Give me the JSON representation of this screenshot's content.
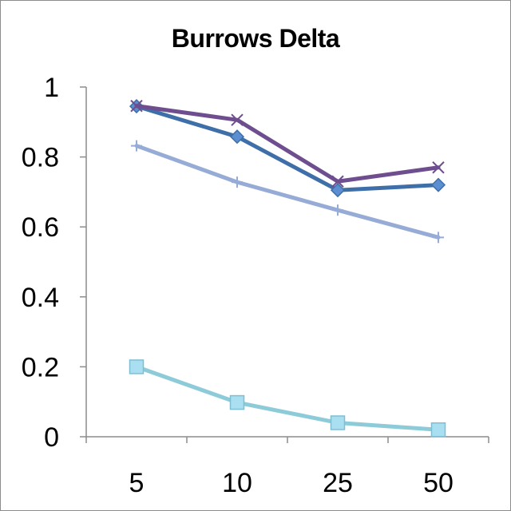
{
  "chart_data": {
    "type": "line",
    "title": "Burrows Delta",
    "xlabel": "",
    "ylabel": "",
    "categories": [
      "5",
      "10",
      "25",
      "50"
    ],
    "ylim": [
      0,
      1
    ],
    "yticks": [
      0,
      0.2,
      0.4,
      0.6,
      0.8,
      1
    ],
    "ytick_labels": [
      "0",
      "0.2",
      "0.4",
      "0.6",
      "0.8",
      "1"
    ],
    "grid": false,
    "legend": "none",
    "series": [
      {
        "values": [
          0.945,
          0.858,
          0.705,
          0.72
        ],
        "color": "#3f6fa8",
        "marker": "diamond"
      },
      {
        "values": [
          0.2,
          0.098,
          0.04,
          0.02
        ],
        "color": "#8ecbd9",
        "marker": "square"
      },
      {
        "values": [
          0.946,
          0.906,
          0.73,
          0.77
        ],
        "color": "#6e4e8e",
        "marker": "x"
      },
      {
        "values": [
          0.832,
          0.728,
          0.648,
          0.57
        ],
        "color": "#96acd6",
        "marker": "plus"
      }
    ]
  }
}
